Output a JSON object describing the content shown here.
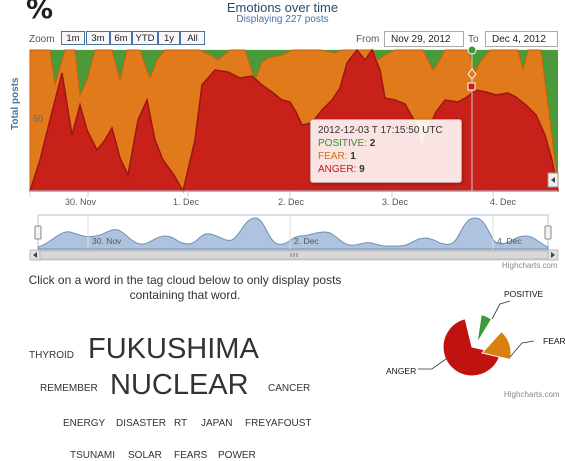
{
  "header": {
    "percent_symbol": "%",
    "title": "Emotions over time",
    "subtitle": "Displaying 227 posts"
  },
  "range_selector": {
    "zoom_label": "Zoom",
    "buttons": [
      "1m",
      "3m",
      "6m",
      "YTD",
      "1y",
      "All"
    ],
    "from_label": "From",
    "from_value": "Nov 29, 2012",
    "to_label": "To",
    "to_value": "Dec 4, 2012"
  },
  "main_chart": {
    "y_axis_title": "Total posts",
    "y_tick": "50",
    "x_ticks": [
      "30. Nov",
      "1. Dec",
      "2. Dec",
      "3. Dec",
      "4. Dec"
    ],
    "navigator_ticks": [
      "30. Nov",
      "2. Dec",
      "4. Dec"
    ],
    "colors": {
      "positive": "#4a9a3a",
      "fear": "#e07a1a",
      "anger": "#c8211a",
      "navigator": "#aec3de"
    },
    "credits": "Highcharts.com"
  },
  "tooltip": {
    "time": "2012-12-03 T 17:15:50 UTC",
    "rows": [
      {
        "label": "POSITIVE:",
        "value": "2",
        "color": "#3a8a2a"
      },
      {
        "label": "FEAR:",
        "value": "1",
        "color": "#d07010"
      },
      {
        "label": "ANGER:",
        "value": "9",
        "color": "#c01a1a"
      }
    ]
  },
  "instructions": "Click on a word in the tag cloud below to only display posts containing that word.",
  "tag_cloud": {
    "words": [
      "THYROID",
      "FUKUSHIMA",
      "REMEMBER",
      "NUCLEAR",
      "CANCER",
      "ENERGY",
      "DISASTER",
      "RT",
      "JAPAN",
      "FREYAFOUST",
      "TSUNAMI",
      "SOLAR",
      "FEARS",
      "POWER"
    ]
  },
  "pie_chart": {
    "labels": [
      "POSITIVE",
      "FEAR",
      "ANGER"
    ],
    "colors": [
      "#3a9a3a",
      "#d9800f",
      "#c0120e"
    ],
    "shares": [
      0.07,
      0.19,
      0.74
    ],
    "credits": "Highcharts.com"
  }
}
